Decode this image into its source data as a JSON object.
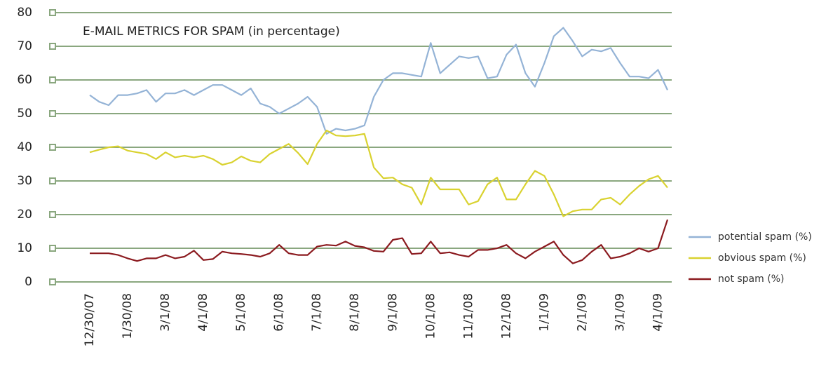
{
  "chart_data": {
    "type": "line",
    "title": "E-MAIL METRICS FOR SPAM (in percentage)",
    "categories": [
      "12/30/07",
      null,
      null,
      null,
      "1/30/08",
      null,
      null,
      null,
      "3/1/08",
      null,
      null,
      null,
      "4/1/08",
      null,
      null,
      null,
      "5/1/08",
      null,
      null,
      null,
      "6/1/08",
      null,
      null,
      null,
      "7/1/08",
      null,
      null,
      null,
      "8/1/08",
      null,
      null,
      null,
      "9/1/08",
      null,
      null,
      null,
      "10/1/08",
      null,
      null,
      null,
      "11/1/08",
      null,
      null,
      null,
      "12/1/08",
      null,
      null,
      null,
      "1/1/09",
      null,
      null,
      null,
      "2/1/09",
      null,
      null,
      null,
      "3/1/09",
      null,
      null,
      null,
      "4/1/09",
      null
    ],
    "series": [
      {
        "name": "potential spam (%)",
        "color": "#94b3d6",
        "values": [
          55.5,
          53.5,
          52.5,
          55.5,
          55.5,
          56,
          57,
          53.5,
          56,
          56,
          57,
          55.5,
          57,
          58.5,
          58.5,
          57,
          55.5,
          57.5,
          53,
          52,
          50,
          51.5,
          53,
          55,
          52,
          44,
          45.5,
          45,
          45.5,
          46.5,
          55,
          60,
          62,
          62,
          61.5,
          61,
          71,
          62,
          64.5,
          67,
          66.5,
          67,
          60.5,
          61,
          67.5,
          70.5,
          62,
          58,
          65,
          73,
          75.5,
          71.5,
          67,
          69,
          68.5,
          69.5,
          65,
          61,
          61,
          60.5,
          63,
          57
        ]
      },
      {
        "name": "obvious spam (%)",
        "color": "#d9d230",
        "values": [
          38.5,
          39.3,
          40,
          40.3,
          39,
          38.5,
          38,
          36.5,
          38.5,
          37,
          37.5,
          37,
          37.5,
          36.5,
          34.8,
          35.5,
          37.3,
          36,
          35.5,
          38,
          39.5,
          41,
          38.3,
          35,
          41,
          45,
          43.5,
          43.3,
          43.5,
          44,
          34,
          30.8,
          31,
          29,
          28,
          23,
          31,
          27.5,
          27.5,
          27.5,
          23,
          24,
          29,
          31,
          24.5,
          24.5,
          29,
          33,
          31.5,
          26,
          19.5,
          21,
          21.5,
          21.5,
          24.5,
          25,
          23,
          26,
          28.5,
          30.5,
          31.5,
          28
        ]
      },
      {
        "name": "not spam (%)",
        "color": "#8b1a1f",
        "values": [
          8.5,
          8.5,
          8.5,
          8,
          7,
          6.2,
          7,
          7,
          8,
          7,
          7.5,
          9.3,
          6.5,
          6.8,
          9,
          8.5,
          8.3,
          8,
          7.5,
          8.5,
          11,
          8.5,
          8,
          8,
          10.5,
          11,
          10.8,
          12,
          10.7,
          10.3,
          9.2,
          9,
          12.5,
          13,
          8.3,
          8.5,
          12,
          8.5,
          8.8,
          8,
          7.5,
          9.5,
          9.5,
          10,
          11,
          8.5,
          7,
          9,
          10.5,
          12,
          8,
          5.5,
          6.5,
          9,
          11,
          7,
          7.5,
          8.5,
          10,
          9,
          10,
          18.5
        ]
      }
    ],
    "ylim": [
      0,
      80
    ],
    "yticks": [
      0,
      10,
      20,
      30,
      40,
      50,
      60,
      70,
      80
    ],
    "grid": true,
    "legend": "right"
  }
}
